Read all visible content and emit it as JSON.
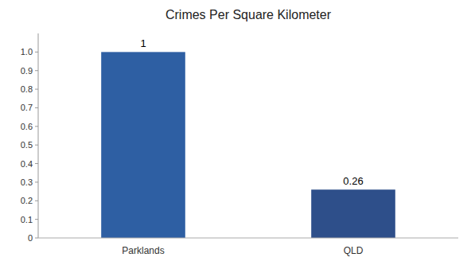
{
  "chart_data": {
    "type": "bar",
    "title": "Crimes Per Square Kilometer",
    "categories": [
      "Parklands",
      "QLD"
    ],
    "values": [
      1.0,
      0.26
    ],
    "colors": [
      "#2e5fa3",
      "#2e4f8a"
    ],
    "data_labels": true,
    "ylim": [
      0,
      1.1
    ],
    "yticks": [
      0,
      0.1,
      0.2,
      0.3,
      0.4,
      0.5,
      0.6,
      0.7,
      0.8,
      0.9,
      {
        "value": 1.0,
        "label": "1.0"
      }
    ],
    "grid": false
  }
}
